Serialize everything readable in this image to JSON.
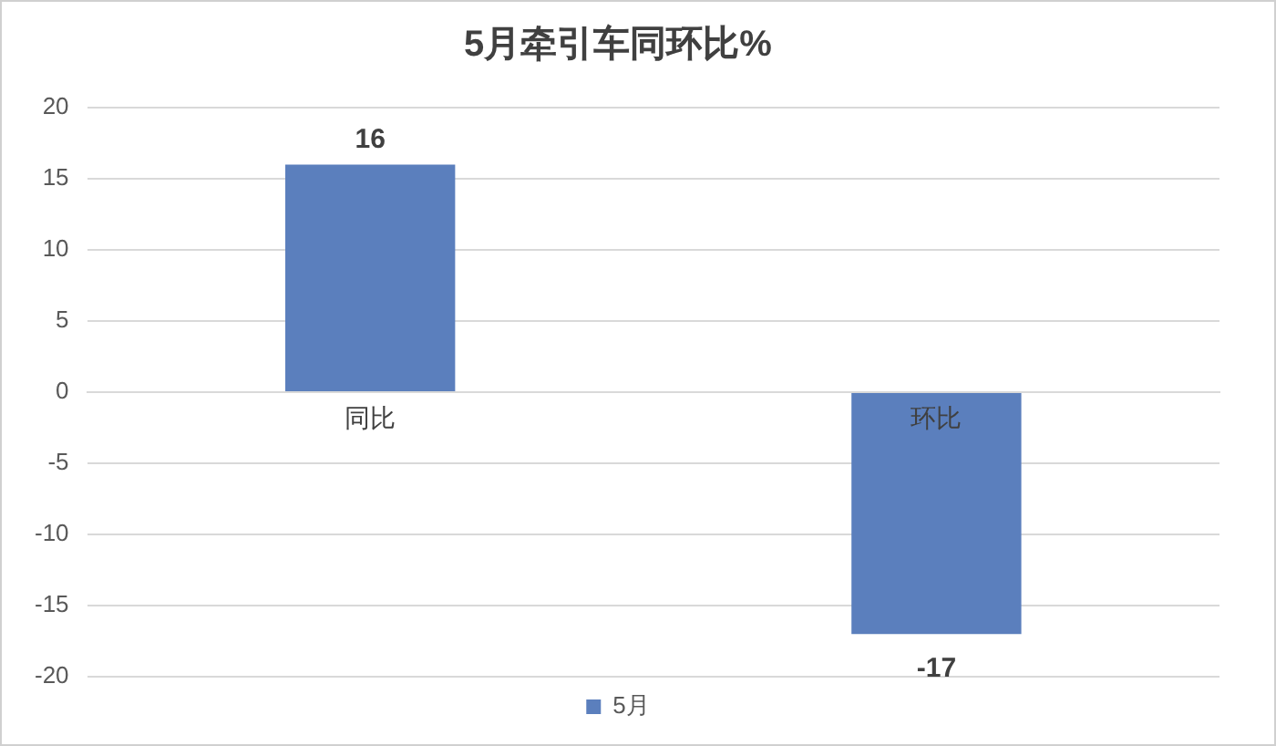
{
  "chart_data": {
    "type": "bar",
    "title": "5月牵引车同环比%",
    "categories": [
      "同比",
      "环比"
    ],
    "series": [
      {
        "name": "5月",
        "color": "#5b7fbd",
        "values": [
          16,
          -17
        ]
      }
    ],
    "ylim": [
      -20,
      20
    ],
    "yticks": [
      -20,
      -15,
      -10,
      -5,
      0,
      5,
      10,
      15,
      20
    ],
    "grid": "y",
    "legend": "bottom",
    "data_labels": true
  }
}
